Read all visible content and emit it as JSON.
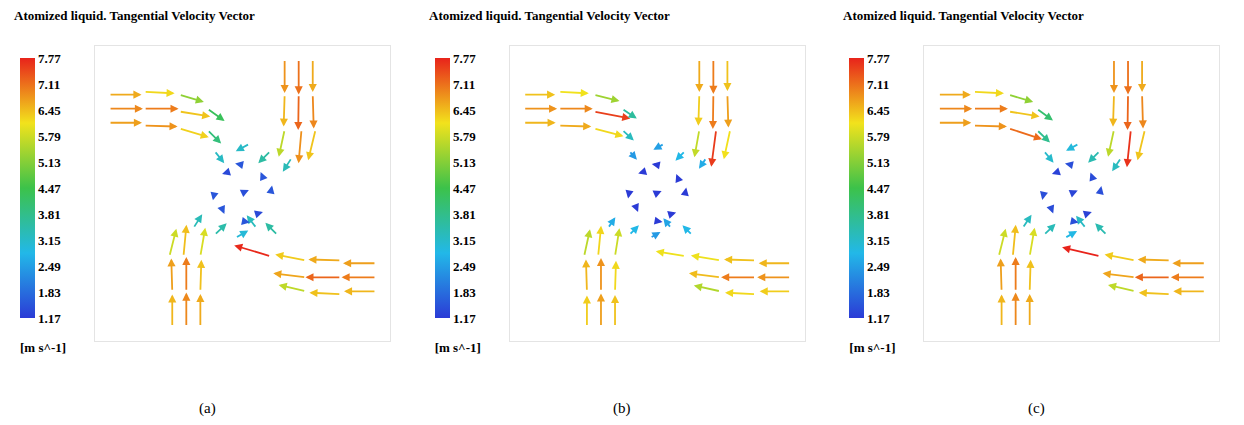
{
  "chart_data": [
    {
      "type": "vector",
      "title": "Atomized liquid. Tangential Velocity Vector",
      "panel_label": "(a)",
      "colorbar_title": "[m s^-1]",
      "colorbar_range": [
        1.17,
        7.77
      ],
      "colorbar_ticks": [
        1.17,
        1.83,
        2.49,
        3.15,
        3.81,
        4.47,
        5.13,
        5.79,
        6.45,
        7.11,
        7.77
      ],
      "xlim": [
        -1.05,
        1.05
      ],
      "ylim": [
        -1.05,
        1.05
      ],
      "tick_labels": false,
      "grid": false,
      "x": [
        -0.95,
        -0.95,
        -0.95,
        -0.7,
        -0.7,
        -0.7,
        -0.45,
        -0.45,
        -0.45,
        -0.25,
        -0.25,
        -0.2,
        0.3,
        0.4,
        0.5,
        0.3,
        0.4,
        0.5,
        0.3,
        0.42,
        0.52,
        0.2,
        0.05,
        0.35,
        0.95,
        0.95,
        0.95,
        0.7,
        0.7,
        0.7,
        0.45,
        0.45,
        0.45,
        0.2,
        0.25,
        0.1,
        -0.3,
        -0.4,
        -0.5,
        -0.3,
        -0.4,
        -0.5,
        -0.3,
        -0.42,
        -0.52,
        -0.2,
        -0.05,
        -0.35,
        0,
        0.15,
        -0.15,
        0.1,
        -0.1,
        0,
        0,
        0.2,
        -0.2
      ],
      "y": [
        0.7,
        0.6,
        0.5,
        0.72,
        0.6,
        0.48,
        0.7,
        0.58,
        0.46,
        0.6,
        0.45,
        0.3,
        0.95,
        0.95,
        0.95,
        0.7,
        0.7,
        0.7,
        0.45,
        0.45,
        0.45,
        0.3,
        0.35,
        0.25,
        -0.5,
        -0.6,
        -0.7,
        -0.48,
        -0.6,
        -0.72,
        -0.48,
        -0.6,
        -0.7,
        -0.45,
        -0.3,
        -0.25,
        -0.95,
        -0.95,
        -0.95,
        -0.7,
        -0.7,
        -0.7,
        -0.45,
        -0.45,
        -0.45,
        -0.3,
        -0.32,
        -0.25,
        0,
        0.1,
        -0.1,
        -0.15,
        0.15,
        0.2,
        -0.2,
        0,
        0
      ],
      "u": [
        6.6,
        6.9,
        6.7,
        6.2,
        7.0,
        6.8,
        5.0,
        6.3,
        6.0,
        3.5,
        2.8,
        2.0,
        0,
        0,
        0,
        -0.2,
        -0.1,
        0.2,
        -1.2,
        -0.6,
        -1.5,
        -2.5,
        -2.8,
        -1.8,
        -6.7,
        -7.0,
        -6.5,
        -6.6,
        -7.2,
        -6.4,
        -6.2,
        -6.6,
        -5.5,
        -7.4,
        -2.5,
        -2.0,
        0,
        0,
        0,
        0.2,
        0,
        -0.2,
        1.0,
        0.6,
        1.4,
        2.5,
        2.6,
        1.8,
        1.3,
        -0.6,
        0.6,
        1.3,
        -1.3,
        -1.5,
        1.5,
        0.3,
        -0.3
      ],
      "v": [
        0,
        0,
        0,
        -0.3,
        0,
        -0.2,
        -1.5,
        -1.0,
        -1.8,
        -2.5,
        -2.8,
        -2.5,
        -6.8,
        -7.1,
        -6.6,
        -6.5,
        -7.2,
        -6.9,
        -5.5,
        -6.8,
        -6.2,
        -2.5,
        -1.5,
        -2.8,
        0,
        0,
        0,
        0.2,
        0,
        0.3,
        1.2,
        0.8,
        1.3,
        2.2,
        2.5,
        2.6,
        6.6,
        6.9,
        6.5,
        6.4,
        7.0,
        6.7,
        5.8,
        6.4,
        5.6,
        2.4,
        1.5,
        2.8,
        0.6,
        1.4,
        -1.4,
        0.4,
        -0.4,
        0.3,
        -0.3,
        1.5,
        -1.5
      ]
    },
    {
      "type": "vector",
      "title": "Atomized liquid. Tangential Velocity Vector",
      "panel_label": "(b)",
      "colorbar_title": "[m s^-1]",
      "colorbar_range": [
        1.17,
        7.77
      ],
      "colorbar_ticks": [
        1.17,
        1.83,
        2.49,
        3.15,
        3.81,
        4.47,
        5.13,
        5.79,
        6.45,
        7.11,
        7.77
      ],
      "xlim": [
        -1.05,
        1.05
      ],
      "ylim": [
        -1.05,
        1.05
      ],
      "tick_labels": false,
      "grid": false,
      "x": [
        -0.95,
        -0.95,
        -0.95,
        -0.7,
        -0.7,
        -0.7,
        -0.45,
        -0.45,
        -0.45,
        -0.25,
        -0.25,
        -0.2,
        0.3,
        0.4,
        0.5,
        0.3,
        0.4,
        0.5,
        0.3,
        0.42,
        0.52,
        0.2,
        0.05,
        0.35,
        0.95,
        0.95,
        0.95,
        0.7,
        0.7,
        0.7,
        0.45,
        0.45,
        0.45,
        0.2,
        0.25,
        0.1,
        -0.3,
        -0.4,
        -0.5,
        -0.3,
        -0.4,
        -0.5,
        -0.3,
        -0.42,
        -0.52,
        -0.2,
        -0.05,
        -0.35,
        0,
        0.15,
        -0.15,
        0.1,
        -0.1,
        0,
        0,
        0.2,
        -0.2
      ],
      "y": [
        0.7,
        0.6,
        0.5,
        0.72,
        0.6,
        0.48,
        0.7,
        0.58,
        0.46,
        0.6,
        0.45,
        0.3,
        0.95,
        0.95,
        0.95,
        0.7,
        0.7,
        0.7,
        0.45,
        0.45,
        0.45,
        0.3,
        0.35,
        0.25,
        -0.5,
        -0.6,
        -0.7,
        -0.48,
        -0.6,
        -0.72,
        -0.48,
        -0.6,
        -0.7,
        -0.45,
        -0.3,
        -0.25,
        -0.95,
        -0.95,
        -0.95,
        -0.7,
        -0.7,
        -0.7,
        -0.45,
        -0.45,
        -0.45,
        -0.3,
        -0.32,
        -0.25,
        0,
        0.1,
        -0.1,
        -0.15,
        0.15,
        0.2,
        -0.2,
        0,
        0
      ],
      "u": [
        6.4,
        6.8,
        6.5,
        6.1,
        6.9,
        6.6,
        5.2,
        7.4,
        6.0,
        3.0,
        2.4,
        1.6,
        0,
        0,
        0,
        -0.2,
        -0.1,
        0.2,
        -1.0,
        -1.0,
        -1.3,
        -2.0,
        -2.2,
        -1.5,
        -6.5,
        -6.8,
        -6.3,
        -6.4,
        -7.0,
        -6.2,
        -6.0,
        -6.4,
        -5.4,
        -6.0,
        -2.0,
        -1.6,
        0,
        0,
        0,
        0.2,
        0,
        -0.2,
        0.9,
        0.6,
        1.2,
        2.0,
        2.1,
        1.5,
        0.9,
        -0.4,
        0.4,
        1.0,
        -1.0,
        -1.1,
        1.1,
        0.2,
        -0.2
      ],
      "v": [
        0,
        0,
        0,
        -0.3,
        0,
        -0.2,
        -1.3,
        -1.4,
        -1.6,
        -2.0,
        -2.2,
        -1.8,
        -6.6,
        -7.0,
        -6.4,
        -6.3,
        -7.0,
        -6.7,
        -5.6,
        -7.5,
        -6.0,
        -2.0,
        -1.2,
        -2.2,
        0,
        0,
        0,
        0.2,
        0,
        0.3,
        1.0,
        0.8,
        1.2,
        1.0,
        2.0,
        2.0,
        6.4,
        6.7,
        6.3,
        6.2,
        6.8,
        6.5,
        5.7,
        6.2,
        5.5,
        2.0,
        1.2,
        2.2,
        0.4,
        1.0,
        -1.0,
        0.3,
        -0.3,
        0.2,
        -0.2,
        1.1,
        -1.1
      ]
    },
    {
      "type": "vector",
      "title": "Atomized liquid. Tangential Velocity Vector",
      "panel_label": "(c)",
      "colorbar_title": "[m s^-1]",
      "colorbar_range": [
        1.17,
        7.77
      ],
      "colorbar_ticks": [
        1.17,
        1.83,
        2.49,
        3.15,
        3.81,
        4.47,
        5.13,
        5.79,
        6.45,
        7.11,
        7.77
      ],
      "xlim": [
        -1.05,
        1.05
      ],
      "ylim": [
        -1.05,
        1.05
      ],
      "tick_labels": false,
      "grid": false,
      "x": [
        -0.95,
        -0.95,
        -0.95,
        -0.7,
        -0.7,
        -0.7,
        -0.45,
        -0.45,
        -0.45,
        -0.25,
        -0.25,
        -0.2,
        0.3,
        0.4,
        0.5,
        0.3,
        0.4,
        0.5,
        0.3,
        0.42,
        0.52,
        0.2,
        0.05,
        0.35,
        0.95,
        0.95,
        0.95,
        0.7,
        0.7,
        0.7,
        0.45,
        0.45,
        0.45,
        0.2,
        0.25,
        0.1,
        -0.3,
        -0.4,
        -0.5,
        -0.3,
        -0.4,
        -0.5,
        -0.3,
        -0.42,
        -0.52,
        -0.2,
        -0.05,
        -0.35,
        0,
        0.15,
        -0.15,
        0.1,
        -0.1,
        0,
        0,
        0.2,
        -0.2
      ],
      "y": [
        0.7,
        0.6,
        0.5,
        0.72,
        0.6,
        0.48,
        0.7,
        0.58,
        0.46,
        0.6,
        0.45,
        0.3,
        0.95,
        0.95,
        0.95,
        0.7,
        0.7,
        0.7,
        0.45,
        0.45,
        0.45,
        0.3,
        0.35,
        0.25,
        -0.5,
        -0.6,
        -0.7,
        -0.48,
        -0.6,
        -0.72,
        -0.48,
        -0.6,
        -0.7,
        -0.45,
        -0.3,
        -0.25,
        -0.95,
        -0.95,
        -0.95,
        -0.7,
        -0.7,
        -0.7,
        -0.45,
        -0.45,
        -0.45,
        -0.3,
        -0.32,
        -0.25,
        0,
        0.1,
        -0.1,
        -0.15,
        0.15,
        0.2,
        -0.2,
        0,
        0
      ],
      "u": [
        6.6,
        6.9,
        6.7,
        6.2,
        7.0,
        6.8,
        5.0,
        6.3,
        6.8,
        3.3,
        2.7,
        2.0,
        0,
        0,
        0,
        -0.2,
        -0.1,
        0.2,
        -1.2,
        -0.8,
        -1.5,
        -2.4,
        -2.6,
        -1.8,
        -6.7,
        -7.0,
        -6.5,
        -6.6,
        -7.2,
        -6.4,
        -6.2,
        -6.6,
        -5.5,
        -7.7,
        -2.4,
        -2.0,
        0,
        0,
        0,
        0.2,
        0,
        -0.2,
        1.0,
        0.6,
        1.4,
        2.4,
        2.5,
        1.8,
        1.2,
        -0.5,
        0.5,
        1.2,
        -1.2,
        -1.4,
        1.4,
        0.3,
        -0.3
      ],
      "v": [
        0,
        0,
        0,
        -0.3,
        0,
        -0.2,
        -1.5,
        -1.0,
        -2.2,
        -2.4,
        -2.6,
        -2.4,
        -6.8,
        -7.1,
        -6.6,
        -6.5,
        -7.2,
        -6.9,
        -5.5,
        -7.6,
        -6.2,
        -2.4,
        -1.4,
        -2.7,
        0,
        0,
        0,
        0.2,
        0,
        0.3,
        1.2,
        0.8,
        1.3,
        1.8,
        2.4,
        2.5,
        6.6,
        6.9,
        6.5,
        6.4,
        7.0,
        6.7,
        5.8,
        6.4,
        5.6,
        2.3,
        1.4,
        2.7,
        0.5,
        1.3,
        -1.3,
        0.4,
        -0.4,
        0.3,
        -0.3,
        1.4,
        -1.4
      ]
    }
  ]
}
